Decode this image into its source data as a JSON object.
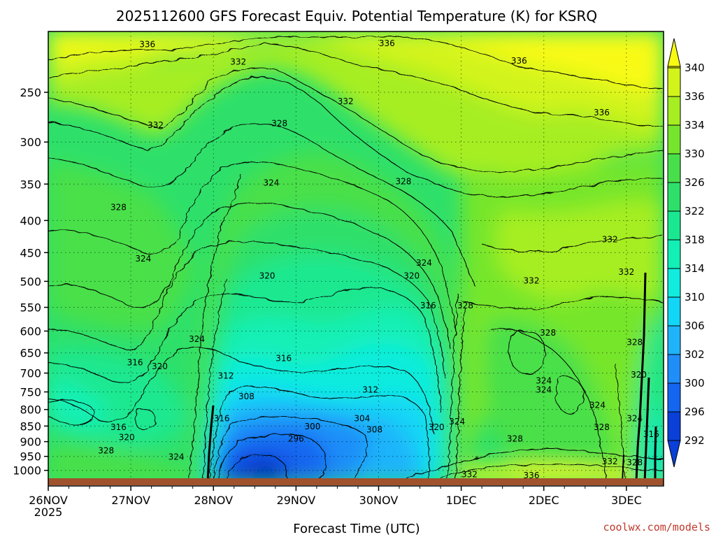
{
  "chart_data": {
    "type": "heatmap",
    "title": "2025112600 GFS Forecast Equiv. Potential Temperature (K) for KSRQ",
    "xlabel": "Forecast Time (UTC)",
    "ylabel": "",
    "x_ticks": [
      "26NOV",
      "27NOV",
      "28NOV",
      "29NOV",
      "30NOV",
      "1DEC",
      "2DEC",
      "3DEC"
    ],
    "x_ticks_sub": [
      "2025",
      "",
      "",
      "",
      "",
      "",
      "",
      ""
    ],
    "x_range_days": [
      0,
      7.45
    ],
    "y_ticks": [
      250,
      300,
      350,
      400,
      450,
      500,
      550,
      600,
      650,
      700,
      750,
      800,
      850,
      900,
      950,
      1000
    ],
    "y_range_hpa": [
      200,
      1040
    ],
    "y_scale": "log",
    "colorbar_levels": [
      340,
      336,
      334,
      330,
      326,
      322,
      318,
      314,
      310,
      306,
      302,
      300,
      296,
      292
    ],
    "colors": {
      "c292": "#0a3fd8",
      "c296": "#1466f0",
      "c300": "#1f8ef8",
      "c302": "#1fb4fa",
      "c306": "#12d6f6",
      "c310": "#10ecdd",
      "c314": "#12f0b6",
      "c318": "#1ae890",
      "c322": "#2ee06a",
      "c326": "#48e04a",
      "c330": "#76e62c",
      "c334": "#a6ee22",
      "c336": "#d2f41a",
      "c340": "#f8fa12",
      "ground": "#a0522d"
    },
    "contour_labels": [
      {
        "text": "336",
        "day": 1.2,
        "hpa": 212
      },
      {
        "text": "336",
        "day": 4.1,
        "hpa": 211
      },
      {
        "text": "336",
        "day": 5.7,
        "hpa": 225
      },
      {
        "text": "336",
        "day": 6.7,
        "hpa": 272
      },
      {
        "text": "332",
        "day": 2.3,
        "hpa": 226
      },
      {
        "text": "332",
        "day": 3.6,
        "hpa": 261
      },
      {
        "text": "332",
        "day": 1.3,
        "hpa": 285
      },
      {
        "text": "328",
        "day": 2.8,
        "hpa": 283
      },
      {
        "text": "328",
        "day": 0.85,
        "hpa": 385
      },
      {
        "text": "328",
        "day": 4.3,
        "hpa": 350
      },
      {
        "text": "324",
        "day": 2.7,
        "hpa": 352
      },
      {
        "text": "324",
        "day": 1.15,
        "hpa": 465
      },
      {
        "text": "324",
        "day": 4.55,
        "hpa": 472
      },
      {
        "text": "320",
        "day": 2.65,
        "hpa": 495
      },
      {
        "text": "320",
        "day": 4.4,
        "hpa": 495
      },
      {
        "text": "316",
        "day": 4.6,
        "hpa": 552
      },
      {
        "text": "328",
        "day": 5.05,
        "hpa": 552
      },
      {
        "text": "332",
        "day": 5.85,
        "hpa": 504
      },
      {
        "text": "332",
        "day": 6.8,
        "hpa": 433
      },
      {
        "text": "332",
        "day": 7.0,
        "hpa": 488
      },
      {
        "text": "324",
        "day": 1.8,
        "hpa": 624
      },
      {
        "text": "328",
        "day": 6.05,
        "hpa": 610
      },
      {
        "text": "316",
        "day": 1.05,
        "hpa": 680
      },
      {
        "text": "320",
        "day": 1.35,
        "hpa": 690
      },
      {
        "text": "316",
        "day": 2.85,
        "hpa": 670
      },
      {
        "text": "328",
        "day": 7.1,
        "hpa": 632
      },
      {
        "text": "312",
        "day": 2.15,
        "hpa": 714
      },
      {
        "text": "320",
        "day": 7.15,
        "hpa": 712
      },
      {
        "text": "324",
        "day": 6.0,
        "hpa": 727
      },
      {
        "text": "324",
        "day": 6.0,
        "hpa": 752
      },
      {
        "text": "312",
        "day": 3.9,
        "hpa": 752
      },
      {
        "text": "308",
        "day": 2.4,
        "hpa": 770
      },
      {
        "text": "324",
        "day": 6.65,
        "hpa": 796
      },
      {
        "text": "316",
        "day": 2.1,
        "hpa": 835
      },
      {
        "text": "304",
        "day": 3.8,
        "hpa": 835
      },
      {
        "text": "324",
        "day": 7.1,
        "hpa": 835
      },
      {
        "text": "300",
        "day": 3.2,
        "hpa": 860
      },
      {
        "text": "324",
        "day": 4.95,
        "hpa": 845
      },
      {
        "text": "316",
        "day": 0.85,
        "hpa": 862
      },
      {
        "text": "308",
        "day": 3.95,
        "hpa": 870
      },
      {
        "text": "320",
        "day": 4.7,
        "hpa": 862
      },
      {
        "text": "328",
        "day": 6.7,
        "hpa": 862
      },
      {
        "text": "316",
        "day": 7.3,
        "hpa": 885
      },
      {
        "text": "320",
        "day": 0.95,
        "hpa": 895
      },
      {
        "text": "296",
        "day": 3.0,
        "hpa": 900
      },
      {
        "text": "328",
        "day": 5.65,
        "hpa": 900
      },
      {
        "text": "328",
        "day": 0.7,
        "hpa": 940
      },
      {
        "text": "324",
        "day": 1.55,
        "hpa": 962
      },
      {
        "text": "332",
        "day": 6.8,
        "hpa": 978
      },
      {
        "text": "328",
        "day": 7.1,
        "hpa": 982
      },
      {
        "text": "332",
        "day": 5.1,
        "hpa": 1025
      },
      {
        "text": "336",
        "day": 5.85,
        "hpa": 1030
      }
    ]
  },
  "credit": "coolwx.com/models"
}
